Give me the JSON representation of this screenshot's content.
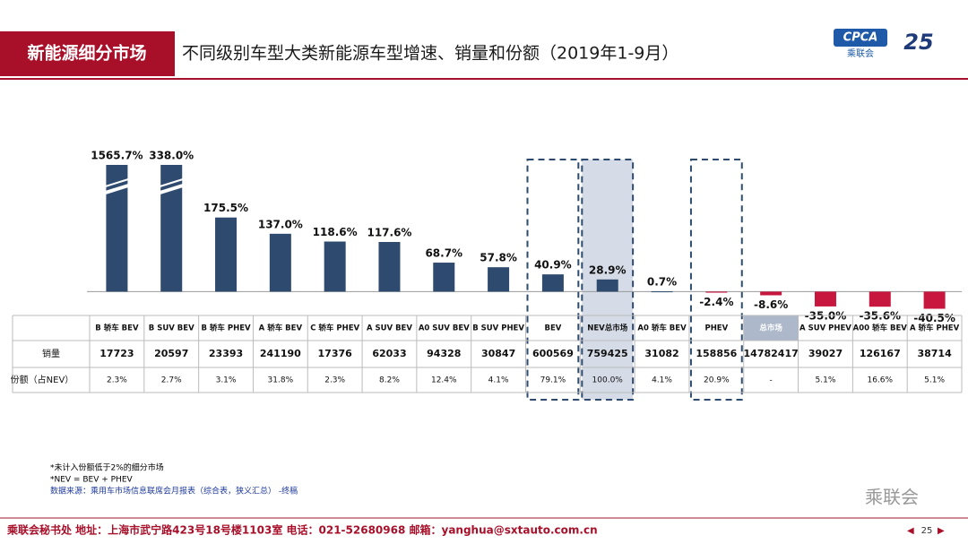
{
  "header": {
    "section": "新能源细分市场",
    "title": "不同级别车型大类新能源车型增速、销量和份额（2019年1-9月）",
    "logo": "CPCA",
    "logo_cn": "乘联会",
    "anniversary": "25"
  },
  "chart_data": {
    "type": "bar",
    "categories": [
      "B 轿车 BEV",
      "B SUV BEV",
      "B 轿车 PHEV",
      "A 轿车 BEV",
      "C 轿车 PHEV",
      "A SUV BEV",
      "A0 SUV BEV",
      "B SUV PHEV",
      "BEV",
      "NEV总市场",
      "A0 轿车 BEV",
      "PHEV",
      "总市场",
      "A SUV PHEV",
      "A00 轿车 BEV",
      "A 轿车 PHEV"
    ],
    "values": [
      1565.7,
      338.0,
      175.5,
      137.0,
      118.6,
      117.6,
      68.7,
      57.8,
      40.9,
      28.9,
      0.7,
      -2.4,
      -8.6,
      -35.0,
      -35.6,
      -40.5
    ],
    "value_labels": [
      "1565.7%",
      "338.0%",
      "175.5%",
      "137.0%",
      "118.6%",
      "117.6%",
      "68.7%",
      "57.8%",
      "40.9%",
      "28.9%",
      "0.7%",
      "-2.4%",
      "-8.6%",
      "-35.0%",
      "-35.6%",
      "-40.5%"
    ],
    "color": "#2f4a6f",
    "negative_color": "#c8173f",
    "ylim": [
      -50,
      300
    ],
    "table": {
      "rows": [
        {
          "label": "销量",
          "values": [
            "17723",
            "20597",
            "23393",
            "241190",
            "17376",
            "62033",
            "94328",
            "30847",
            "600569",
            "759425",
            "31082",
            "158856",
            "14782417",
            "39027",
            "126167",
            "38714"
          ]
        },
        {
          "label": "份额（占NEV）",
          "values": [
            "2.3%",
            "2.7%",
            "3.1%",
            "31.8%",
            "2.3%",
            "8.2%",
            "12.4%",
            "4.1%",
            "79.1%",
            "100.0%",
            "4.1%",
            "20.9%",
            "-",
            "5.1%",
            "16.6%",
            "5.1%"
          ]
        }
      ]
    }
  },
  "notes": [
    "*未计入份额低于2%的细分市场",
    "*NEV = BEV + PHEV",
    "数据来源：乘用车市场信息联席会月报表（综合表，狭义汇总）  -终稿"
  ],
  "footer": {
    "text": "乘联会秘书处  地址：上海市武宁路423号18号楼1103室  电话：021-52680968  邮箱：yanghua@sxtauto.com.cn",
    "page": "25",
    "watermark": "乘联会"
  }
}
